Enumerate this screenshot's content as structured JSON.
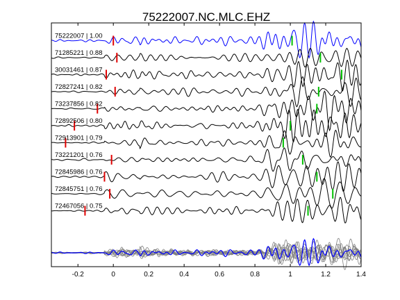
{
  "chart_data": {
    "type": "line",
    "title": "75222007.NC.MLC.EHZ",
    "xlabel": "",
    "ylabel": "",
    "xlim": [
      -0.35,
      1.4
    ],
    "xticks": [
      -0.2,
      0,
      0.2,
      0.4,
      0.6,
      0.8,
      1,
      1.2,
      1.4
    ],
    "xtick_labels": [
      "-0.2",
      "0",
      "0.2",
      "0.4",
      "0.6",
      "0.8",
      "1",
      "1.2",
      "1.4"
    ],
    "grid": false,
    "colors": {
      "reference_trace": "#0000ff",
      "trace": "#000000",
      "stack_trace": "#808080",
      "p_pick": "#e00000",
      "s_pick": "#00c000"
    },
    "traces": [
      {
        "label": "75222007 | 1.00",
        "p_pick": 0.0,
        "s_pick": 1.01,
        "seed": 1,
        "reference": true
      },
      {
        "label": "71285221 | 0.88",
        "p_pick": 0.02,
        "s_pick": 1.17,
        "seed": 2
      },
      {
        "label": "30031461 | 0.87",
        "p_pick": -0.04,
        "s_pick": 1.29,
        "seed": 3
      },
      {
        "label": "72827241 | 0.82",
        "p_pick": 0.01,
        "s_pick": 1.16,
        "seed": 4
      },
      {
        "label": "73237856 | 0.82",
        "p_pick": -0.09,
        "s_pick": 1.15,
        "seed": 5
      },
      {
        "label": "72892506 | 0.80",
        "p_pick": -0.22,
        "s_pick": 1.0,
        "seed": 6
      },
      {
        "label": "72913901 | 0.79",
        "p_pick": -0.27,
        "s_pick": 0.96,
        "seed": 7
      },
      {
        "label": "73221201 | 0.76",
        "p_pick": -0.01,
        "s_pick": 1.07,
        "seed": 8
      },
      {
        "label": "72845986 | 0.76",
        "p_pick": -0.05,
        "s_pick": 1.15,
        "seed": 9
      },
      {
        "label": "72845751 | 0.76",
        "p_pick": -0.02,
        "s_pick": 1.24,
        "seed": 10
      },
      {
        "label": "72467056 | 0.75",
        "p_pick": -0.16,
        "s_pick": 1.1,
        "seed": 11
      }
    ],
    "stack": {
      "count": 10
    }
  }
}
